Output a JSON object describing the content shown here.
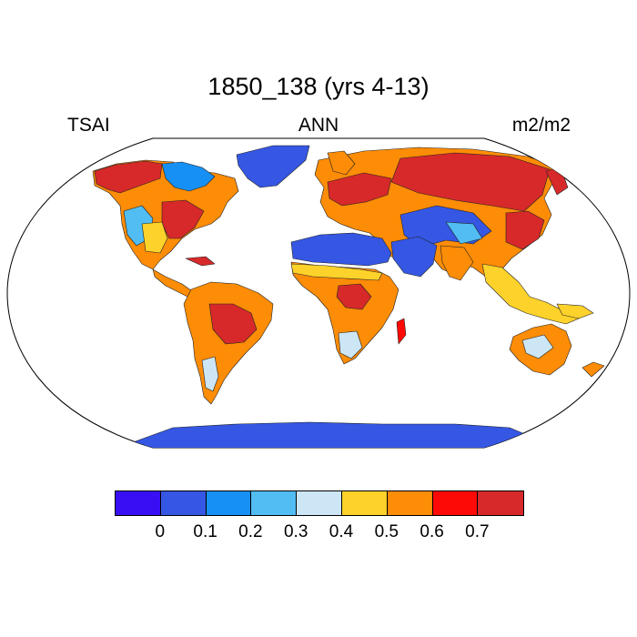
{
  "title": "1850_138 (yrs 4-13)",
  "variable": "TSAI",
  "period": "ANN",
  "units": "m2/m2",
  "map_colors": {
    "c0": "#3a0ef5",
    "c1": "#3557e3",
    "c2": "#1790f5",
    "c3": "#51bdf3",
    "c4": "#cde6f6",
    "c5": "#fdd22a",
    "c6": "#fd8c06",
    "c7": "#fe0a06",
    "c8": "#d7292a"
  },
  "legend": {
    "colors": [
      "#3a0ef5",
      "#3557e3",
      "#1790f5",
      "#51bdf3",
      "#cde6f6",
      "#fdd22a",
      "#fd8c06",
      "#fe0a06",
      "#d7292a"
    ],
    "labels": [
      "0",
      "0.1",
      "0.2",
      "0.3",
      "0.4",
      "0.5",
      "0.6",
      "0.7"
    ]
  }
}
